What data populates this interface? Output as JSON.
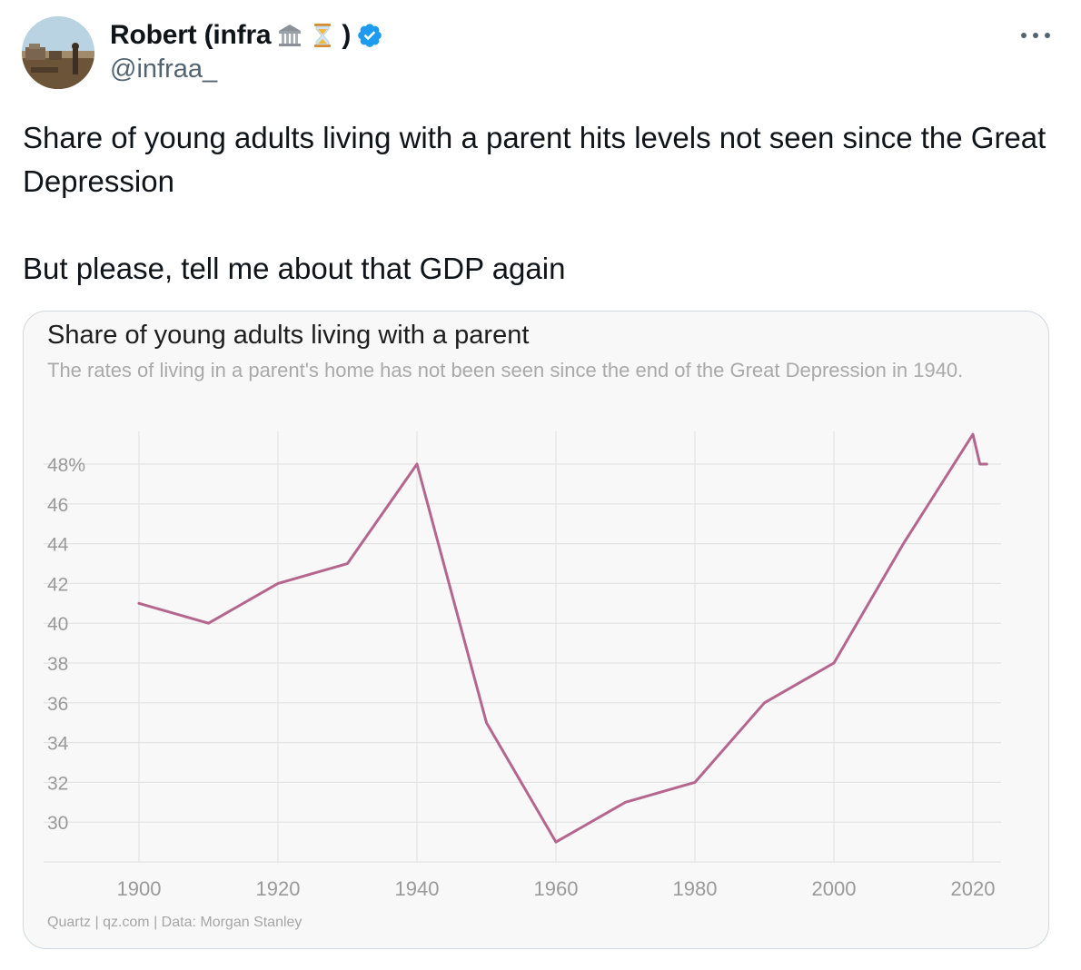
{
  "tweet": {
    "display_name": "Robert (infra",
    "name_suffix": ")",
    "name_emojis": [
      "classical-building-icon",
      "hourglass-icon"
    ],
    "verified": true,
    "handle": "@infraa_",
    "text_line1": "Share of young adults living with a parent hits levels not seen since the Great Depression",
    "text_line2": "But please, tell me about that GDP again"
  },
  "colors": {
    "line": "#b5668f",
    "grid": "#e3e3e3",
    "verified": "#1d9bf0",
    "handle": "#536471"
  },
  "chart_data": {
    "type": "line",
    "title": "Share of young adults living with a parent",
    "subtitle": "The rates of living in a parent's home has not been seen since the end of the Great Depression in 1940.",
    "source": "Quartz | qz.com | Data: Morgan Stanley",
    "x": [
      1900,
      1910,
      1920,
      1930,
      1940,
      1950,
      1960,
      1970,
      1980,
      1990,
      2000,
      2010,
      2020,
      2021,
      2022
    ],
    "series": [
      {
        "values": [
          41,
          40,
          42,
          43,
          48,
          35,
          29,
          31,
          32,
          36,
          38,
          44,
          49.5,
          48,
          48
        ]
      }
    ],
    "xticks": [
      1900,
      1920,
      1940,
      1960,
      1980,
      2000,
      2020
    ],
    "yticks": [
      30,
      32,
      34,
      36,
      38,
      40,
      42,
      44,
      46,
      48
    ],
    "ytick_labels": [
      "30",
      "32",
      "34",
      "36",
      "38",
      "40",
      "42",
      "44",
      "46",
      "48%"
    ],
    "xlim": [
      1900,
      2020
    ],
    "ylim": [
      28,
      48
    ],
    "grid": true,
    "legend": "none"
  }
}
